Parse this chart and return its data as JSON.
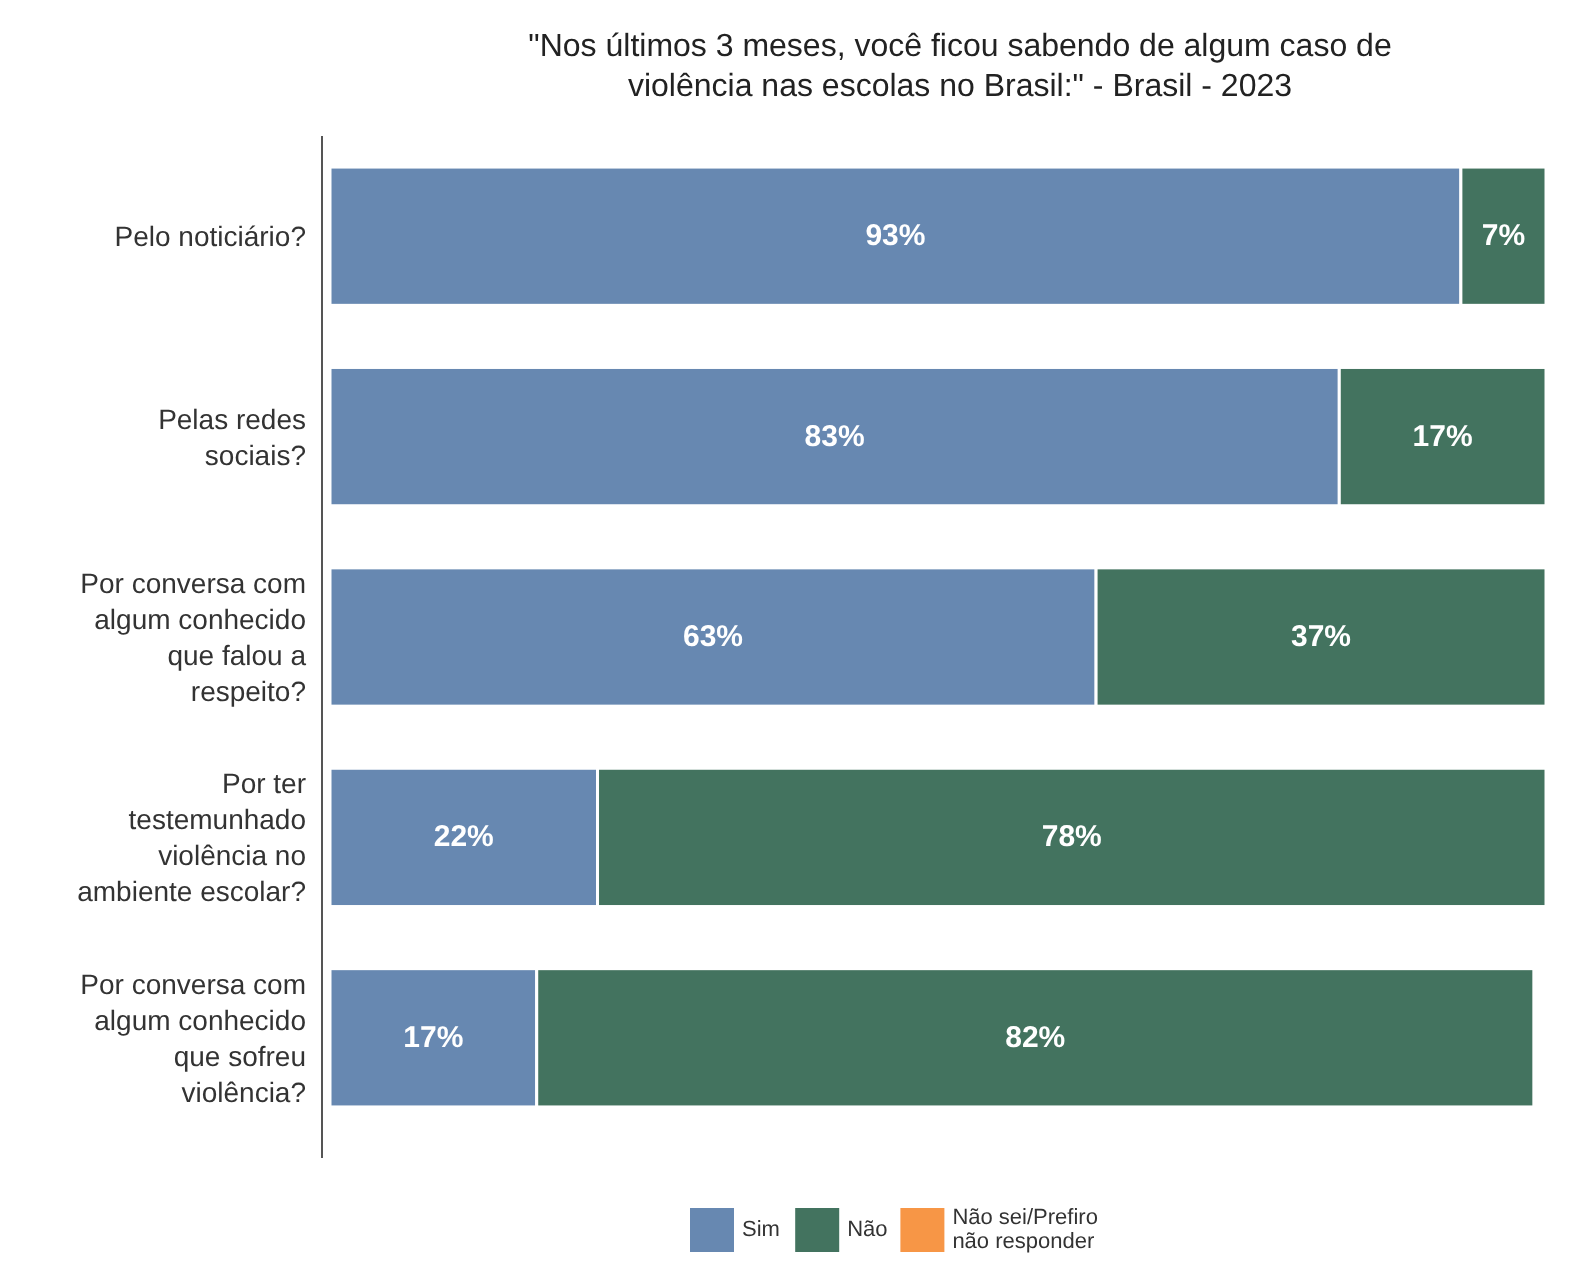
{
  "chart_data": {
    "type": "bar",
    "orientation": "horizontal",
    "stacked": true,
    "title": "\"Nos últimos 3 meses, você ficou sabendo de algum caso de\nviolência nas escolas no Brasil:\" - Brasil - 2023",
    "categories": [
      "Pelo noticiário?",
      "Pelas redes\nsociais?",
      "Por conversa com\nalgum conhecido\nque falou a\nrespeito?",
      "Por ter\ntestemunhado\nviolência no\nambiente escolar?",
      "Por conversa com\nalgum conhecido\nque sofreu\nviolência?"
    ],
    "xlim": [
      0,
      100
    ],
    "series": [
      {
        "name": "Sim",
        "color": "#6788b1",
        "values": [
          93,
          83,
          63,
          22,
          17
        ],
        "value_labels": [
          "93%",
          "83%",
          "63%",
          "22%",
          "17%"
        ]
      },
      {
        "name": "Não",
        "color": "#43735f",
        "values": [
          7,
          17,
          37,
          78,
          82
        ],
        "value_labels": [
          "7%",
          "17%",
          "37%",
          "78%",
          "82%"
        ]
      },
      {
        "name": "Não sei/Prefiro\nnão responder",
        "color": "#f79646",
        "values": [
          null,
          null,
          null,
          null,
          null
        ]
      }
    ],
    "legend": "bottom",
    "tick_labels": "y"
  }
}
